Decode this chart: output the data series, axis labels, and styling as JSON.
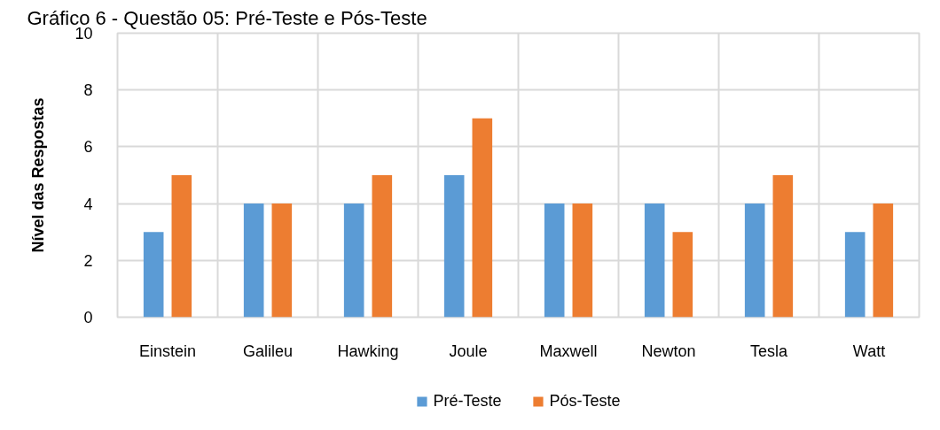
{
  "chart_data": {
    "type": "bar",
    "title": "Gráfico 6 - Questão 05: Pré-Teste e Pós-Teste",
    "ylabel": "Nível das Respostas",
    "categories": [
      "Einstein",
      "Galileu",
      "Hawking",
      "Joule",
      "Maxwell",
      "Newton",
      "Tesla",
      "Watt"
    ],
    "series": [
      {
        "name": "Pré-Teste",
        "color": "#5b9bd5",
        "values": [
          3,
          4,
          4,
          5,
          4,
          4,
          4,
          3
        ]
      },
      {
        "name": "Pós-Teste",
        "color": "#ed7d31",
        "values": [
          5,
          4,
          5,
          7,
          4,
          3,
          5,
          4
        ]
      }
    ],
    "ylim": [
      0,
      10
    ],
    "yticks": [
      0,
      2,
      4,
      6,
      8,
      10
    ],
    "grid": true,
    "legend": "bottom"
  }
}
